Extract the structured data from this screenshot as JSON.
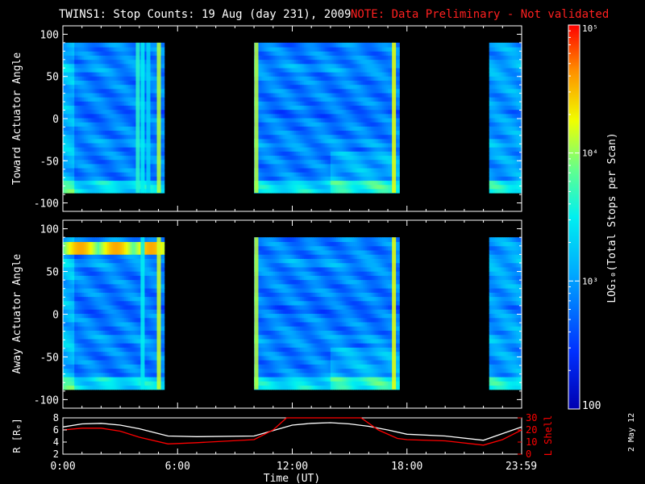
{
  "header": {
    "title": "TWINS1: Stop Counts: 19 Aug (day 231), 2009",
    "note": "NOTE: Data Preliminary - Not validated",
    "note_color": "#ff2020"
  },
  "side_label": "2 May 12",
  "chart_data": [
    {
      "type": "heatmap",
      "name": "toward",
      "ylabel": "Toward Actuator Angle",
      "ylim": [
        -110,
        110
      ],
      "yticks": [
        "100",
        "50",
        "0",
        "-50",
        "-100"
      ],
      "ytick_values": [
        100,
        50,
        0,
        -50,
        -100
      ],
      "x_unit": "hours UT",
      "angle_range": [
        -88,
        90
      ],
      "data_intervals": [
        [
          0.0,
          5.3
        ],
        [
          10.0,
          17.6
        ],
        [
          22.3,
          24.0
        ]
      ],
      "bright_columns": [
        {
          "t": 3.9,
          "level": 0.55
        },
        {
          "t": 4.15,
          "level": 0.5
        },
        {
          "t": 4.45,
          "level": 0.45
        },
        {
          "t": 5.0,
          "level": 0.7
        },
        {
          "t": 10.1,
          "level": 0.7
        },
        {
          "t": 17.3,
          "level": 0.75
        }
      ]
    },
    {
      "type": "heatmap",
      "name": "away",
      "ylabel": "Away Actuator Angle",
      "ylim": [
        -110,
        110
      ],
      "yticks": [
        "100",
        "50",
        "0",
        "-50",
        "-100"
      ],
      "ytick_values": [
        100,
        50,
        0,
        -50,
        -100
      ],
      "x_unit": "hours UT",
      "angle_range": [
        -88,
        90
      ],
      "data_intervals": [
        [
          0.0,
          5.3
        ],
        [
          10.0,
          17.6
        ],
        [
          22.3,
          24.0
        ]
      ],
      "hot_band": {
        "angle_range": [
          70,
          85
        ],
        "t_range": [
          0.0,
          5.3
        ],
        "level": 0.85
      },
      "bright_columns": [
        {
          "t": 4.15,
          "level": 0.5
        },
        {
          "t": 5.0,
          "level": 0.72
        },
        {
          "t": 10.1,
          "level": 0.7
        },
        {
          "t": 17.3,
          "level": 0.75
        }
      ]
    },
    {
      "type": "line",
      "name": "orbit",
      "ylabel_left": "R [Rₑ]",
      "ylabel_right": "L Shell",
      "right_color": "#ff0000",
      "ylim_left": [
        2,
        8
      ],
      "yticks_left": [
        "8",
        "6",
        "4",
        "2"
      ],
      "ytick_values_left": [
        8,
        6,
        4,
        2
      ],
      "ylim_right": [
        0,
        30
      ],
      "yticks_right": [
        "30",
        "20",
        "10",
        "0"
      ],
      "ytick_values_right": [
        30,
        20,
        10,
        0
      ],
      "xlabel": "Time (UT)",
      "xticks": [
        "0:00",
        "6:00",
        "12:00",
        "18:00",
        "23:59"
      ],
      "xtick_values": [
        0,
        6,
        12,
        18,
        23.98
      ],
      "series": [
        {
          "color": "#ffffff",
          "x": [
            0,
            1,
            2,
            3,
            4,
            5,
            5.5,
            7,
            10,
            11,
            12,
            13,
            14,
            15,
            16,
            17,
            18,
            20,
            22,
            23,
            24
          ],
          "y": [
            6.5,
            7.0,
            7.1,
            6.8,
            6.2,
            5.4,
            5.0,
            4.9,
            5.0,
            5.9,
            6.8,
            7.1,
            7.2,
            7.0,
            6.6,
            6.0,
            5.3,
            5.0,
            4.3,
            5.4,
            6.5
          ]
        },
        {
          "color": "#ff0000",
          "x": [
            0,
            1,
            2,
            3,
            4,
            5.5,
            7,
            10,
            11,
            11.7,
            15.6,
            16.5,
            17.5,
            18,
            20,
            22,
            23,
            24
          ],
          "y": [
            20,
            21.5,
            21.5,
            19,
            14,
            8.5,
            9.5,
            12,
            20,
            30,
            30,
            20,
            13,
            12,
            11,
            7.5,
            12,
            20
          ]
        }
      ]
    },
    {
      "type": "colorbar",
      "label": "LOG₁₀(Total Stops per Scan)",
      "scale": "log",
      "range": [
        100,
        100000
      ],
      "ticks": [
        "10⁵",
        "10⁴",
        "10³",
        "100"
      ],
      "tick_values": [
        100000,
        10000,
        1000,
        100
      ]
    }
  ]
}
